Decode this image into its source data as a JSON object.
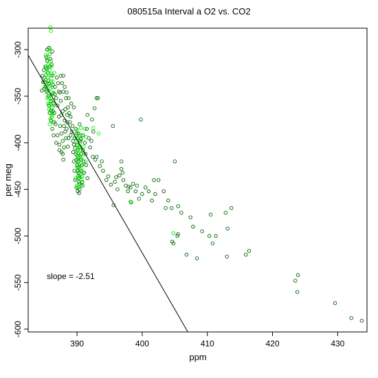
{
  "chart_data": {
    "type": "scatter",
    "title": "080515a   Interval a O2 vs. CO2",
    "xlabel": "ppm",
    "ylabel": "per meg",
    "xlim": [
      382.5,
      434.5
    ],
    "ylim": [
      -603,
      -277
    ],
    "x_ticks": [
      390,
      400,
      410,
      420,
      430
    ],
    "y_ticks": [
      -300,
      -350,
      -400,
      -450,
      -500,
      -550,
      -600
    ],
    "annotation": "slope =  -2.51",
    "fit_line": {
      "slope": -2.51,
      "points": [
        [
          382.5,
          -306
        ],
        [
          407.0,
          -603
        ]
      ]
    },
    "colors": {
      "dark": "#006400",
      "bright": "#00ee00",
      "line": "#000000"
    },
    "series": [
      {
        "color_key": "dark",
        "points": [
          [
            384.9,
            -322
          ],
          [
            385.0,
            -330
          ],
          [
            385.1,
            -335
          ],
          [
            385.2,
            -340
          ],
          [
            385.3,
            -345
          ],
          [
            385.4,
            -300
          ],
          [
            385.4,
            -312
          ],
          [
            385.5,
            -325
          ],
          [
            385.6,
            -333
          ],
          [
            385.6,
            -350
          ],
          [
            385.7,
            -360
          ],
          [
            385.8,
            -305
          ],
          [
            385.8,
            -318
          ],
          [
            385.9,
            -342
          ],
          [
            386.0,
            -355
          ],
          [
            386.0,
            -365
          ],
          [
            386.1,
            -372
          ],
          [
            386.2,
            -328
          ],
          [
            386.3,
            -338
          ],
          [
            386.3,
            -347
          ],
          [
            386.4,
            -358
          ],
          [
            386.5,
            -368
          ],
          [
            386.5,
            -378
          ],
          [
            385.2,
            -318
          ],
          [
            385.0,
            -342
          ],
          [
            384.8,
            -335
          ],
          [
            384.7,
            -328
          ],
          [
            385.3,
            -308
          ],
          [
            385.7,
            -298
          ],
          [
            386.1,
            -316
          ],
          [
            386.6,
            -340
          ],
          [
            386.8,
            -352
          ],
          [
            387.0,
            -360
          ],
          [
            387.2,
            -372
          ],
          [
            387.4,
            -382
          ],
          [
            387.6,
            -390
          ],
          [
            387.8,
            -398
          ],
          [
            388.0,
            -405
          ],
          [
            386.9,
            -330
          ],
          [
            387.2,
            -345
          ],
          [
            387.5,
            -355
          ],
          [
            387.8,
            -366
          ],
          [
            388.1,
            -376
          ],
          [
            388.4,
            -385
          ],
          [
            388.7,
            -395
          ],
          [
            386.7,
            -380
          ],
          [
            387.0,
            -392
          ],
          [
            387.3,
            -402
          ],
          [
            387.6,
            -410
          ],
          [
            387.9,
            -418
          ],
          [
            388.2,
            -388
          ],
          [
            388.5,
            -378
          ],
          [
            388.8,
            -368
          ],
          [
            387.1,
            -336
          ],
          [
            387.5,
            -328
          ],
          [
            387.9,
            -345
          ],
          [
            388.3,
            -352
          ],
          [
            388.6,
            -362
          ],
          [
            389.0,
            -372
          ],
          [
            389.3,
            -382
          ],
          [
            386.2,
            -385
          ],
          [
            386.0,
            -376
          ],
          [
            385.8,
            -368
          ],
          [
            385.6,
            -358
          ],
          [
            386.4,
            -392
          ],
          [
            386.8,
            -400
          ],
          [
            387.3,
            -408
          ],
          [
            387.8,
            -412
          ],
          [
            388.3,
            -395
          ],
          [
            388.6,
            -404
          ],
          [
            389.0,
            -392
          ],
          [
            389.4,
            -398
          ],
          [
            387.4,
            -346
          ],
          [
            387.7,
            -336
          ],
          [
            387.9,
            -328
          ],
          [
            388.1,
            -340
          ],
          [
            388.4,
            -346
          ],
          [
            388.7,
            -352
          ],
          [
            389.1,
            -358
          ],
          [
            389.5,
            -362
          ],
          [
            389.8,
            -385
          ],
          [
            389.9,
            -390
          ],
          [
            390.0,
            -395
          ],
          [
            390.0,
            -402
          ],
          [
            390.1,
            -408
          ],
          [
            390.1,
            -414
          ],
          [
            390.2,
            -420
          ],
          [
            390.2,
            -426
          ],
          [
            390.3,
            -432
          ],
          [
            390.3,
            -438
          ],
          [
            390.4,
            -444
          ],
          [
            390.4,
            -450
          ],
          [
            390.5,
            -398
          ],
          [
            390.5,
            -405
          ],
          [
            390.6,
            -412
          ],
          [
            390.6,
            -418
          ],
          [
            390.7,
            -424
          ],
          [
            390.7,
            -430
          ],
          [
            390.8,
            -436
          ],
          [
            390.8,
            -442
          ],
          [
            389.7,
            -406
          ],
          [
            389.8,
            -412
          ],
          [
            389.9,
            -418
          ],
          [
            390.0,
            -424
          ],
          [
            390.1,
            -430
          ],
          [
            390.2,
            -436
          ],
          [
            390.3,
            -442
          ],
          [
            389.9,
            -448
          ],
          [
            390.1,
            -452
          ],
          [
            390.9,
            -392
          ],
          [
            390.9,
            -408
          ],
          [
            391.0,
            -420
          ],
          [
            391.1,
            -432
          ],
          [
            391.2,
            -400
          ],
          [
            391.3,
            -412
          ],
          [
            391.4,
            -424
          ],
          [
            389.6,
            -395
          ],
          [
            389.5,
            -402
          ],
          [
            389.4,
            -410
          ],
          [
            389.5,
            -420
          ],
          [
            389.6,
            -430
          ],
          [
            389.7,
            -440
          ],
          [
            391.5,
            -385
          ],
          [
            391.8,
            -395
          ],
          [
            392.0,
            -405
          ],
          [
            392.5,
            -388
          ],
          [
            393.0,
            -415
          ],
          [
            393.5,
            -425
          ],
          [
            392.7,
            -363
          ],
          [
            393.2,
            -352
          ],
          [
            392.3,
            -375
          ],
          [
            391.6,
            -370
          ],
          [
            392.2,
            -398
          ],
          [
            394.0,
            -430
          ],
          [
            394.5,
            -440
          ],
          [
            395.2,
            -445
          ],
          [
            395.8,
            -442
          ],
          [
            396.2,
            -450
          ],
          [
            396.5,
            -435
          ],
          [
            396.8,
            -428
          ],
          [
            397.1,
            -440
          ],
          [
            397.5,
            -446
          ],
          [
            397.8,
            -452
          ],
          [
            398.2,
            -448
          ],
          [
            398.6,
            -444
          ],
          [
            399.0,
            -452
          ],
          [
            399.5,
            -460
          ],
          [
            400.0,
            -455
          ],
          [
            400.5,
            -448
          ],
          [
            401.0,
            -452
          ],
          [
            401.5,
            -462
          ],
          [
            402.0,
            -455
          ],
          [
            402.5,
            -440
          ],
          [
            403.3,
            -452
          ],
          [
            404.0,
            -462
          ],
          [
            404.5,
            -470
          ],
          [
            405.0,
            -420
          ],
          [
            405.5,
            -468
          ],
          [
            406.0,
            -475
          ],
          [
            404.6,
            -506
          ],
          [
            404.8,
            -508
          ],
          [
            405.5,
            -498
          ],
          [
            406.8,
            -520
          ],
          [
            407.4,
            -480
          ],
          [
            407.8,
            -490
          ],
          [
            408.4,
            -524
          ],
          [
            409.2,
            -495
          ],
          [
            410.3,
            -500
          ],
          [
            410.5,
            -477
          ],
          [
            410.8,
            -508
          ],
          [
            411.3,
            -500
          ],
          [
            412.8,
            -475
          ],
          [
            413.0,
            -522
          ],
          [
            413.1,
            -492
          ],
          [
            413.7,
            -470
          ],
          [
            415.9,
            -520
          ],
          [
            416.4,
            -516
          ],
          [
            397.0,
            -432
          ],
          [
            396.8,
            -420
          ],
          [
            395.5,
            -382
          ],
          [
            393.8,
            -420
          ],
          [
            393.0,
            -352
          ],
          [
            399.8,
            -375
          ],
          [
            423.5,
            -548
          ],
          [
            423.9,
            -542
          ],
          [
            423.8,
            -560
          ],
          [
            429.6,
            -572
          ],
          [
            432.1,
            -588
          ],
          [
            433.7,
            -591
          ],
          [
            385.3,
            -320
          ],
          [
            385.5,
            -330
          ],
          [
            385.9,
            -310
          ],
          [
            386.2,
            -302
          ],
          [
            386.6,
            -348
          ],
          [
            386.3,
            -366
          ],
          [
            385.7,
            -337
          ],
          [
            384.6,
            -344
          ],
          [
            387.6,
            -370
          ],
          [
            388.0,
            -382
          ],
          [
            388.2,
            -364
          ],
          [
            388.5,
            -370
          ],
          [
            388.9,
            -378
          ],
          [
            389.2,
            -388
          ],
          [
            390.4,
            -380
          ],
          [
            390.2,
            -390
          ],
          [
            390.6,
            -396
          ],
          [
            390.7,
            -446
          ],
          [
            390.3,
            -454
          ],
          [
            391.6,
            -438
          ],
          [
            392.4,
            -415
          ],
          [
            396.0,
            -437
          ],
          [
            398.3,
            -464
          ],
          [
            399.2,
            -446
          ],
          [
            401.8,
            -440
          ],
          [
            403.6,
            -470
          ],
          [
            405.4,
            -500
          ],
          [
            392.8,
            -418
          ],
          [
            394.8,
            -436
          ],
          [
            395.6,
            -467
          ],
          [
            397.9,
            -447
          ]
        ]
      },
      {
        "color_key": "bright",
        "points": [
          [
            385.4,
            -310
          ],
          [
            385.6,
            -316
          ],
          [
            385.8,
            -322
          ],
          [
            386.0,
            -328
          ],
          [
            385.5,
            -330
          ],
          [
            385.7,
            -336
          ],
          [
            385.9,
            -342
          ],
          [
            386.1,
            -348
          ],
          [
            385.6,
            -344
          ],
          [
            385.8,
            -350
          ],
          [
            386.0,
            -356
          ],
          [
            386.2,
            -362
          ],
          [
            385.9,
            -366
          ],
          [
            386.1,
            -372
          ],
          [
            386.3,
            -378
          ],
          [
            385.3,
            -324
          ],
          [
            385.5,
            -338
          ],
          [
            385.7,
            -352
          ],
          [
            385.9,
            -358
          ],
          [
            386.1,
            -318
          ],
          [
            386.3,
            -334
          ],
          [
            385.8,
            -305
          ],
          [
            386.0,
            -312
          ],
          [
            386.2,
            -340
          ],
          [
            386.4,
            -346
          ],
          [
            385.4,
            -346
          ],
          [
            385.6,
            -358
          ],
          [
            385.7,
            -364
          ],
          [
            385.9,
            -374
          ],
          [
            385.1,
            -318
          ],
          [
            385.2,
            -328
          ],
          [
            384.9,
            -334
          ],
          [
            385.0,
            -340
          ],
          [
            386.3,
            -354
          ],
          [
            386.4,
            -360
          ],
          [
            385.9,
            -276
          ],
          [
            386.0,
            -280
          ],
          [
            385.8,
            -299
          ],
          [
            386.1,
            -326
          ],
          [
            385.5,
            -320
          ],
          [
            386.2,
            -368
          ],
          [
            389.8,
            -393
          ],
          [
            390.0,
            -400
          ],
          [
            390.1,
            -406
          ],
          [
            390.2,
            -412
          ],
          [
            390.3,
            -418
          ],
          [
            390.4,
            -424
          ],
          [
            389.9,
            -420
          ],
          [
            390.0,
            -426
          ],
          [
            390.1,
            -432
          ],
          [
            390.2,
            -438
          ],
          [
            390.3,
            -444
          ],
          [
            390.5,
            -400
          ],
          [
            390.6,
            -408
          ],
          [
            390.7,
            -416
          ],
          [
            390.8,
            -424
          ],
          [
            390.9,
            -432
          ],
          [
            390.0,
            -386
          ],
          [
            390.2,
            -395
          ],
          [
            390.4,
            -404
          ],
          [
            390.6,
            -428
          ],
          [
            390.8,
            -436
          ],
          [
            389.9,
            -410
          ],
          [
            390.1,
            -416
          ],
          [
            390.3,
            -428
          ],
          [
            390.5,
            -414
          ],
          [
            390.7,
            -440
          ],
          [
            390.0,
            -446
          ],
          [
            390.4,
            -392
          ],
          [
            390.6,
            -384
          ],
          [
            391.0,
            -404
          ],
          [
            391.1,
            -412
          ],
          [
            391.2,
            -385
          ],
          [
            391.4,
            -394
          ],
          [
            392.5,
            -384
          ],
          [
            393.3,
            -390
          ],
          [
            398.2,
            -463
          ],
          [
            404.8,
            -497
          ],
          [
            385.6,
            -300
          ],
          [
            385.2,
            -306
          ],
          [
            386.3,
            -370
          ],
          [
            385.8,
            -380
          ],
          [
            390.2,
            -448
          ],
          [
            390.7,
            -392
          ],
          [
            391.3,
            -420
          ],
          [
            390.9,
            -446
          ],
          [
            389.8,
            -438
          ],
          [
            386.5,
            -325
          ],
          [
            385.4,
            -352
          ],
          [
            386.0,
            -334
          ],
          [
            390.5,
            -436
          ],
          [
            390.3,
            -404
          ]
        ]
      }
    ]
  }
}
